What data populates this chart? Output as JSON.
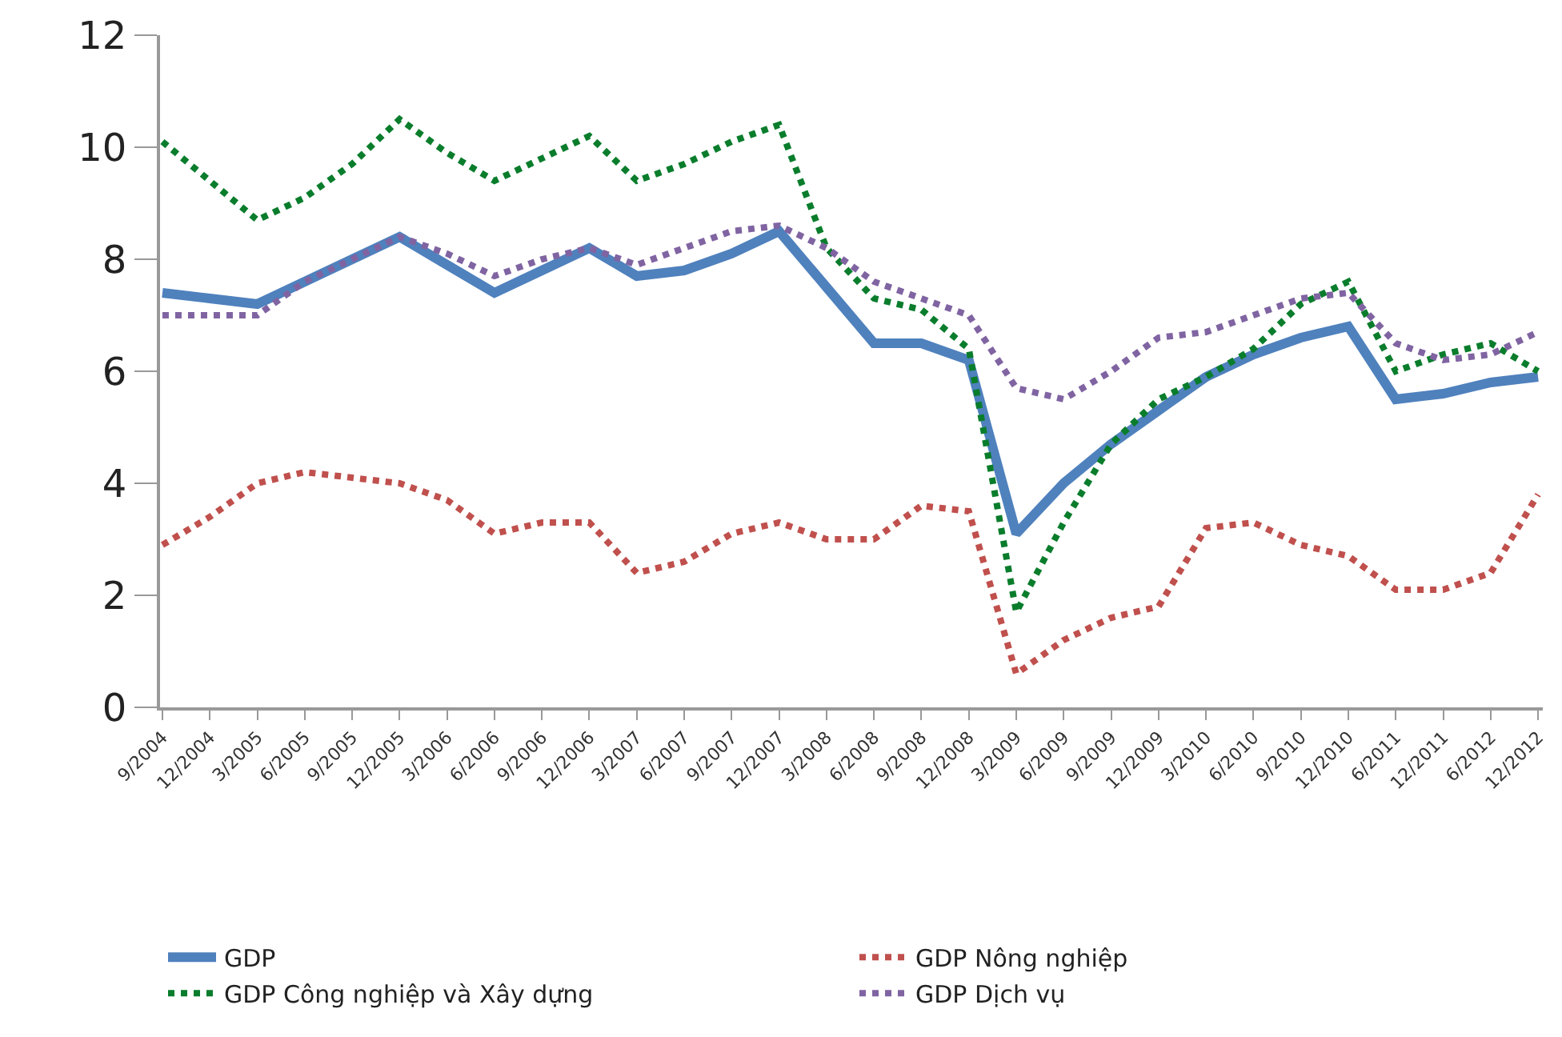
{
  "chart_data": {
    "type": "line",
    "categories": [
      "9/2004",
      "12/2004",
      "3/2005",
      "6/2005",
      "9/2005",
      "12/2005",
      "3/2006",
      "6/2006",
      "9/2006",
      "12/2006",
      "3/2007",
      "6/2007",
      "9/2007",
      "12/2007",
      "3/2008",
      "6/2008",
      "9/2008",
      "12/2008",
      "3/2009",
      "6/2009",
      "9/2009",
      "12/2009",
      "3/2010",
      "6/2010",
      "9/2010",
      "12/2010",
      "6/2011",
      "12/2011",
      "6/2012",
      "12/2012"
    ],
    "series": [
      {
        "name": "GDP",
        "color": "#4f81bd",
        "line_style": "solid",
        "values": [
          7.4,
          7.3,
          7.2,
          7.6,
          8.0,
          8.4,
          7.9,
          7.4,
          7.8,
          8.2,
          7.7,
          7.8,
          8.1,
          8.5,
          7.5,
          6.5,
          6.5,
          6.2,
          3.1,
          4.0,
          4.7,
          5.3,
          5.9,
          6.3,
          6.6,
          6.8,
          5.5,
          5.6,
          5.8,
          5.9
        ]
      },
      {
        "name": "GDP Nông nghiệp",
        "color": "#c0504d",
        "line_style": "dotted",
        "values": [
          2.9,
          3.4,
          4.0,
          4.2,
          4.1,
          4.0,
          3.7,
          3.1,
          3.3,
          3.3,
          2.4,
          2.6,
          3.1,
          3.3,
          3.0,
          3.0,
          3.6,
          3.5,
          0.6,
          1.2,
          1.6,
          1.8,
          3.2,
          3.3,
          2.9,
          2.7,
          2.1,
          2.1,
          2.4,
          3.8
        ]
      },
      {
        "name": "GDP Công nghiệp và Xây dựng",
        "color": "#0a7d2c",
        "line_style": "dotted",
        "values": [
          10.1,
          9.4,
          8.7,
          9.1,
          9.7,
          10.5,
          9.9,
          9.4,
          9.8,
          10.2,
          9.4,
          9.7,
          10.1,
          10.4,
          8.2,
          7.3,
          7.1,
          6.4,
          1.7,
          3.3,
          4.7,
          5.5,
          5.9,
          6.4,
          7.2,
          7.6,
          6.0,
          6.3,
          6.5,
          6.0
        ]
      },
      {
        "name": "GDP Dịch vụ",
        "color": "#8064a2",
        "line_style": "dotted",
        "values": [
          7.0,
          7.0,
          7.0,
          7.6,
          8.0,
          8.4,
          8.1,
          7.7,
          8.0,
          8.2,
          7.9,
          8.2,
          8.5,
          8.6,
          8.2,
          7.6,
          7.3,
          7.0,
          5.7,
          5.5,
          6.0,
          6.6,
          6.7,
          7.0,
          7.3,
          7.4,
          6.5,
          6.2,
          6.3,
          6.7
        ]
      }
    ],
    "ylim": [
      0,
      12
    ],
    "yticks": [
      0,
      2,
      4,
      6,
      8,
      10,
      12
    ],
    "grid": false,
    "legend": "bottom",
    "marker": "none"
  }
}
